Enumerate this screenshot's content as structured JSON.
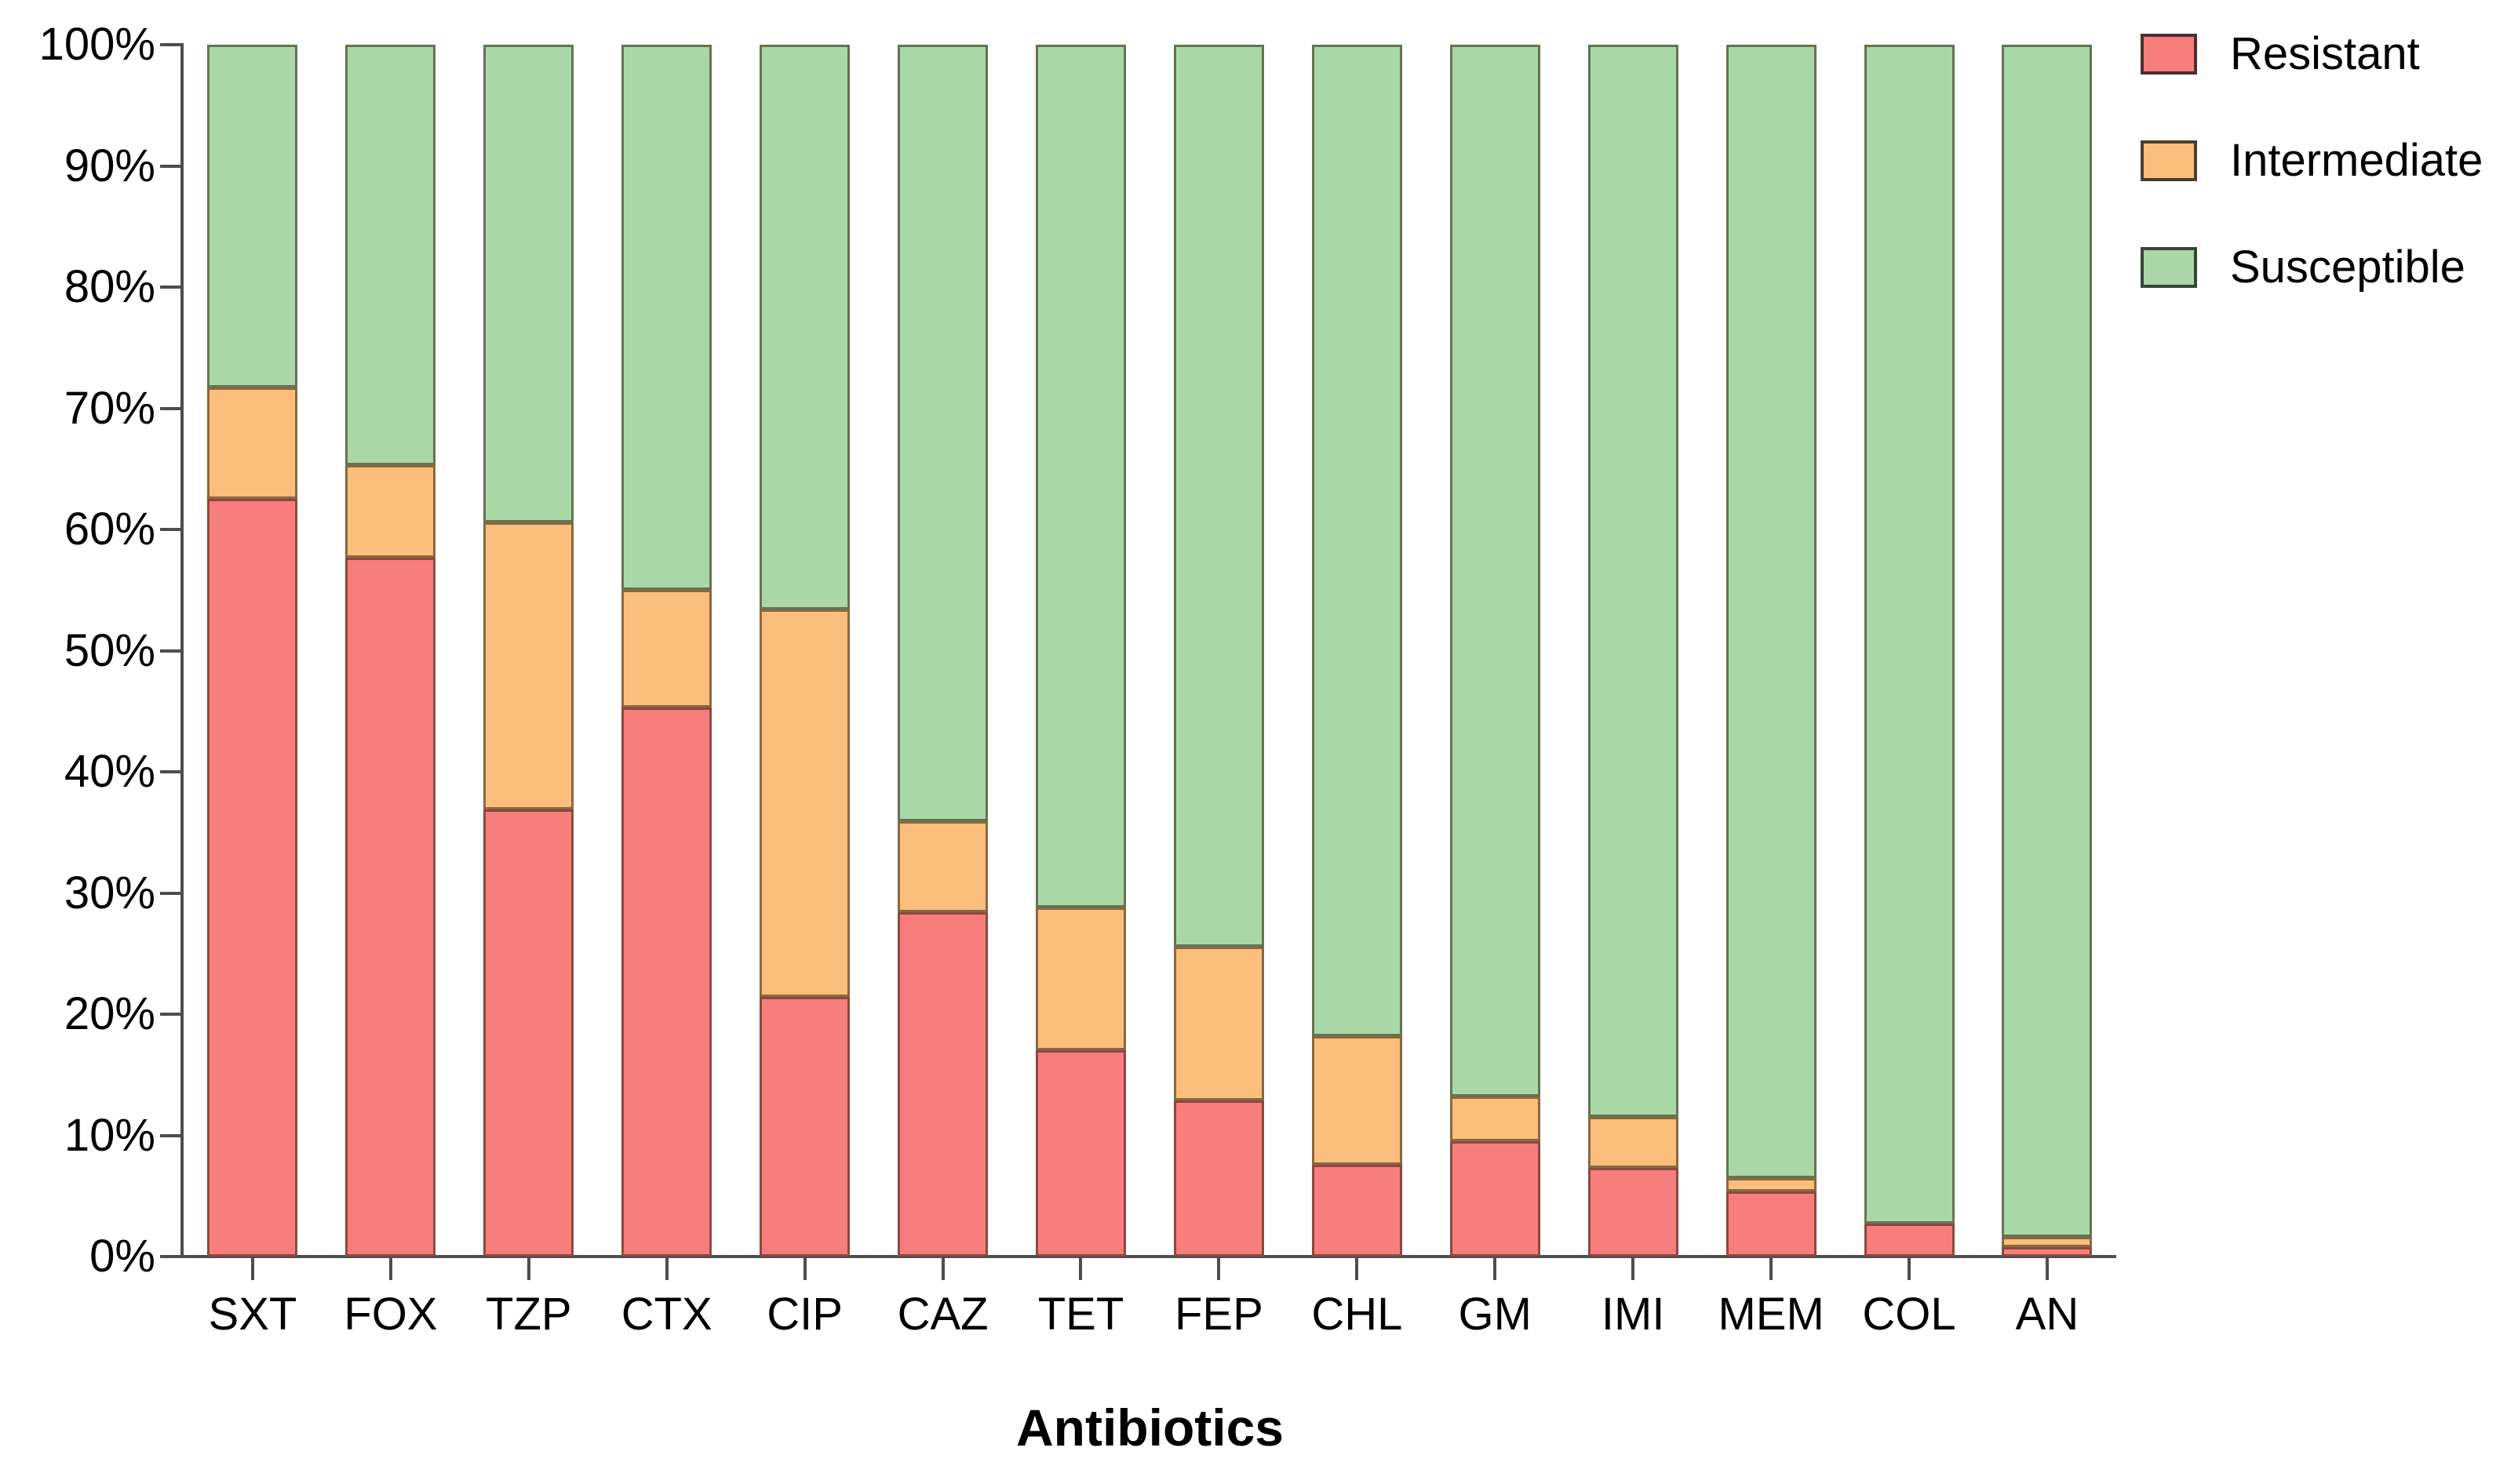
{
  "chart_data": {
    "type": "bar",
    "stacked": true,
    "percent_stacked": true,
    "title": "",
    "xlabel": "Antibiotics",
    "ylabel": "",
    "ylim": [
      0,
      100
    ],
    "grid": false,
    "legend_position": "top-right",
    "y_ticks": [
      "0%",
      "10%",
      "20%",
      "30%",
      "40%",
      "50%",
      "60%",
      "70%",
      "80%",
      "90%",
      "100%"
    ],
    "categories": [
      "SXT",
      "FOX",
      "TZP",
      "CTX",
      "CIP",
      "CAZ",
      "TET",
      "FEP",
      "CHL",
      "GM",
      "IMI",
      "MEM",
      "COL",
      "AN"
    ],
    "series": [
      {
        "name": "Resistant",
        "color": "#F87D7D",
        "values": [
          62.5,
          57.7,
          36.9,
          45.3,
          21.4,
          28.4,
          17.0,
          12.9,
          7.6,
          9.5,
          7.3,
          5.4,
          2.7,
          0.8
        ]
      },
      {
        "name": "Intermediate",
        "color": "#FBBE7D",
        "values": [
          9.2,
          7.6,
          23.7,
          9.7,
          32.0,
          7.5,
          11.8,
          12.7,
          10.6,
          3.7,
          4.2,
          1.1,
          0.0,
          0.8
        ]
      },
      {
        "name": "Susceptible",
        "color": "#A9D8A6",
        "values": [
          28.3,
          34.7,
          39.4,
          45.0,
          46.6,
          64.1,
          71.2,
          74.4,
          81.8,
          86.8,
          88.5,
          93.5,
          97.3,
          98.4
        ]
      }
    ]
  },
  "axes": {
    "line_color": "#4d4d4d",
    "text_color": "#000000"
  },
  "legend": {
    "items": [
      {
        "label": "Resistant",
        "color": "#F87D7D"
      },
      {
        "label": "Intermediate",
        "color": "#FBBE7D"
      },
      {
        "label": "Susceptible",
        "color": "#A9D8A6"
      }
    ]
  }
}
